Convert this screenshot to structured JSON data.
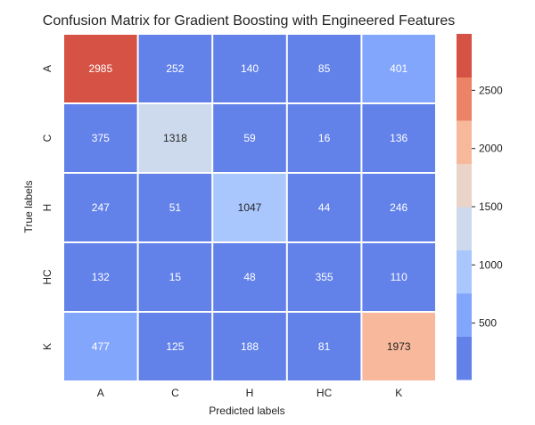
{
  "chart_data": {
    "type": "heatmap",
    "title": "Confusion Matrix for Gradient Boosting with Engineered Features",
    "xlabel": "Predicted labels",
    "ylabel": "True labels",
    "x_categories": [
      "A",
      "C",
      "H",
      "HC",
      "K"
    ],
    "y_categories": [
      "A",
      "C",
      "H",
      "HC",
      "K"
    ],
    "values": [
      [
        2985,
        252,
        140,
        85,
        401
      ],
      [
        375,
        1318,
        59,
        16,
        136
      ],
      [
        247,
        51,
        1047,
        44,
        246
      ],
      [
        132,
        15,
        48,
        355,
        110
      ],
      [
        477,
        125,
        188,
        81,
        1973
      ]
    ],
    "colorbar": {
      "min": 15,
      "max": 2985,
      "ticks": [
        500,
        1000,
        1500,
        2000,
        2500
      ],
      "tick_labels": [
        "500",
        "1000",
        "1500",
        "2000",
        "2500"
      ],
      "palette": [
        "#6282ea",
        "#82a6fb",
        "#aac7fd",
        "#cdd9ec",
        "#ead4c8",
        "#f7b89c",
        "#ed8366",
        "#d65244"
      ]
    },
    "annotation_colors": {
      "light": "#ffffff",
      "dark": "#262626"
    },
    "grid": false
  }
}
